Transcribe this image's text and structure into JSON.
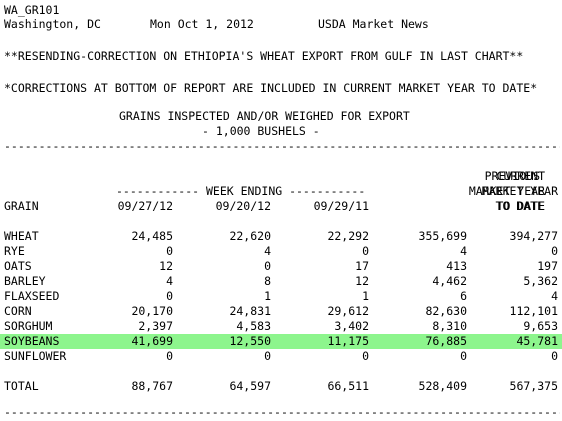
{
  "header": {
    "report_id": "WA_GR101",
    "location": "Washington, DC",
    "date": "Mon Oct 1, 2012",
    "source": "USDA Market News"
  },
  "notes": {
    "resend": "**RESENDING-CORRECTION ON ETHIOPIA'S WHEAT EXPORT FROM GULF IN LAST CHART**",
    "corrections": "*CORRECTIONS AT BOTTOM OF REPORT ARE INCLUDED IN CURRENT MARKET YEAR TO DATE*"
  },
  "table": {
    "title": "GRAINS INSPECTED AND/OR WEIGHED FOR EXPORT",
    "subtitle": "- 1,000 BUSHELS -",
    "week_ending_label": "------------ WEEK ENDING -----------",
    "col_current": [
      "CURRENT",
      "MARKET YEAR",
      "TO DATE"
    ],
    "col_previous": [
      "PREVIOUS",
      "MARKET YEAR",
      "TO DATE"
    ],
    "col_grain": "GRAIN",
    "col_week1": "09/27/12",
    "col_week2": "09/20/12",
    "col_week3": "09/29/11",
    "highlight_color": "#8df58d",
    "rows": [
      {
        "grain": "WHEAT",
        "w1": "24,485",
        "w2": "22,620",
        "w3": "22,292",
        "cur": "355,699",
        "prev": "394,277"
      },
      {
        "grain": "RYE",
        "w1": "0",
        "w2": "4",
        "w3": "0",
        "cur": "4",
        "prev": "0"
      },
      {
        "grain": "OATS",
        "w1": "12",
        "w2": "0",
        "w3": "17",
        "cur": "413",
        "prev": "197"
      },
      {
        "grain": "BARLEY",
        "w1": "4",
        "w2": "8",
        "w3": "12",
        "cur": "4,462",
        "prev": "5,362"
      },
      {
        "grain": "FLAXSEED",
        "w1": "0",
        "w2": "1",
        "w3": "1",
        "cur": "6",
        "prev": "4"
      },
      {
        "grain": "CORN",
        "w1": "20,170",
        "w2": "24,831",
        "w3": "29,612",
        "cur": "82,630",
        "prev": "112,101"
      },
      {
        "grain": "SORGHUM",
        "w1": "2,397",
        "w2": "4,583",
        "w3": "3,402",
        "cur": "8,310",
        "prev": "9,653"
      },
      {
        "grain": "SOYBEANS",
        "w1": "41,699",
        "w2": "12,550",
        "w3": "11,175",
        "cur": "76,885",
        "prev": "45,781"
      },
      {
        "grain": "SUNFLOWER",
        "w1": "0",
        "w2": "0",
        "w3": "0",
        "cur": "0",
        "prev": "0"
      }
    ],
    "total": {
      "grain": "TOTAL",
      "w1": "88,767",
      "w2": "64,597",
      "w3": "66,511",
      "cur": "528,409",
      "prev": "567,375"
    }
  },
  "rule_line": "----------------------------------------------------------------------------------------------------"
}
